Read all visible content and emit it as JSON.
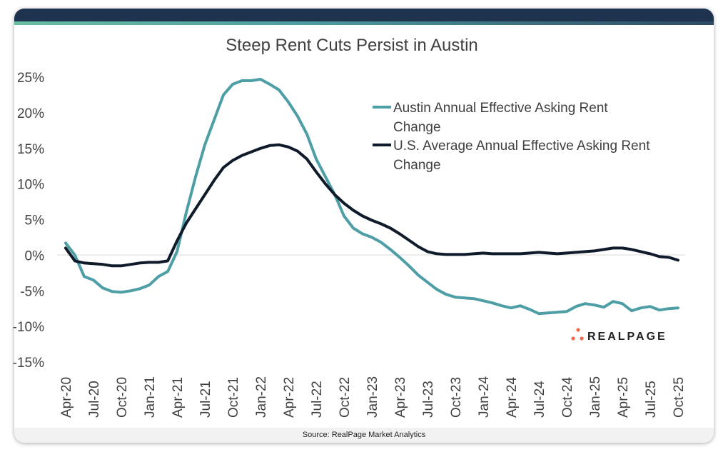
{
  "chart_data": {
    "type": "line",
    "title": "Steep Rent Cuts Persist in Austin",
    "xlabel": "",
    "ylabel": "",
    "ylim": [
      -15,
      25
    ],
    "yticks": [
      "25%",
      "20%",
      "15%",
      "10%",
      "5%",
      "0%",
      "-5%",
      "-10%",
      "-15%"
    ],
    "ytick_values": [
      25,
      20,
      15,
      10,
      5,
      0,
      -5,
      -10,
      -15
    ],
    "xtick_labels": [
      "Apr-20",
      "Jul-20",
      "Oct-20",
      "Jan-21",
      "Apr-21",
      "Jul-21",
      "Oct-21",
      "Jan-22",
      "Apr-22",
      "Jul-22",
      "Oct-22",
      "Jan-23",
      "Apr-23",
      "Jul-23",
      "Oct-23",
      "Jan-24",
      "Apr-24",
      "Jul-24",
      "Oct-24",
      "Jan-25",
      "Apr-25",
      "Jul-25",
      "Oct-25"
    ],
    "x_start": "Apr-20",
    "x_end": "Oct-25",
    "x_frequency": "monthly",
    "grid": false,
    "legend_position": "top-right",
    "series": [
      {
        "name": "Austin Annual Effective Asking Rent Change",
        "color": "#4e9ea6",
        "values": [
          1.7,
          0,
          -3,
          -3.5,
          -4.6,
          -5.1,
          -5.2,
          -5.0,
          -4.7,
          -4.2,
          -3.0,
          -2.3,
          0.5,
          6,
          11,
          15.5,
          19,
          22.5,
          24,
          24.5,
          24.5,
          24.7,
          24,
          23.2,
          21.5,
          19.5,
          17,
          13.5,
          11,
          8.5,
          5.5,
          3.8,
          3.0,
          2.5,
          1.8,
          0.8,
          -0.3,
          -1.5,
          -2.8,
          -3.8,
          -4.8,
          -5.5,
          -5.9,
          -6.0,
          -6.1,
          -6.4,
          -6.7,
          -7.1,
          -7.4,
          -7.1,
          -7.6,
          -8.2,
          -8.1,
          -8.0,
          -7.9,
          -7.2,
          -6.8,
          -7.0,
          -7.3,
          -6.5,
          -6.8,
          -7.8,
          -7.4,
          -7.2,
          -7.7,
          -7.5,
          -7.4
        ]
      },
      {
        "name": "U.S. Average Annual Effective Asking Rent Change",
        "color": "#0f1a2b",
        "values": [
          1.0,
          -0.8,
          -1.1,
          -1.2,
          -1.3,
          -1.5,
          -1.5,
          -1.3,
          -1.1,
          -1.0,
          -1.0,
          -0.8,
          2.0,
          4.5,
          6.5,
          8.5,
          10.5,
          12.3,
          13.3,
          14.0,
          14.5,
          15.0,
          15.4,
          15.5,
          15.2,
          14.6,
          13.5,
          11.7,
          10.0,
          8.5,
          7.3,
          6.3,
          5.5,
          4.9,
          4.4,
          3.8,
          3.0,
          2.1,
          1.2,
          0.5,
          0.2,
          0.1,
          0.1,
          0.1,
          0.2,
          0.3,
          0.2,
          0.2,
          0.2,
          0.2,
          0.3,
          0.4,
          0.3,
          0.2,
          0.3,
          0.4,
          0.5,
          0.6,
          0.8,
          1.0,
          1.0,
          0.8,
          0.5,
          0.2,
          -0.2,
          -0.3,
          -0.7
        ]
      }
    ]
  },
  "header": {
    "brand_colors": [
      "#1e334d",
      "#6bbda3"
    ]
  },
  "logo": {
    "text": "REALPAGE",
    "dot_color": "#f26b4f"
  },
  "footer": {
    "source": "Source: RealPage Market Analytics"
  }
}
